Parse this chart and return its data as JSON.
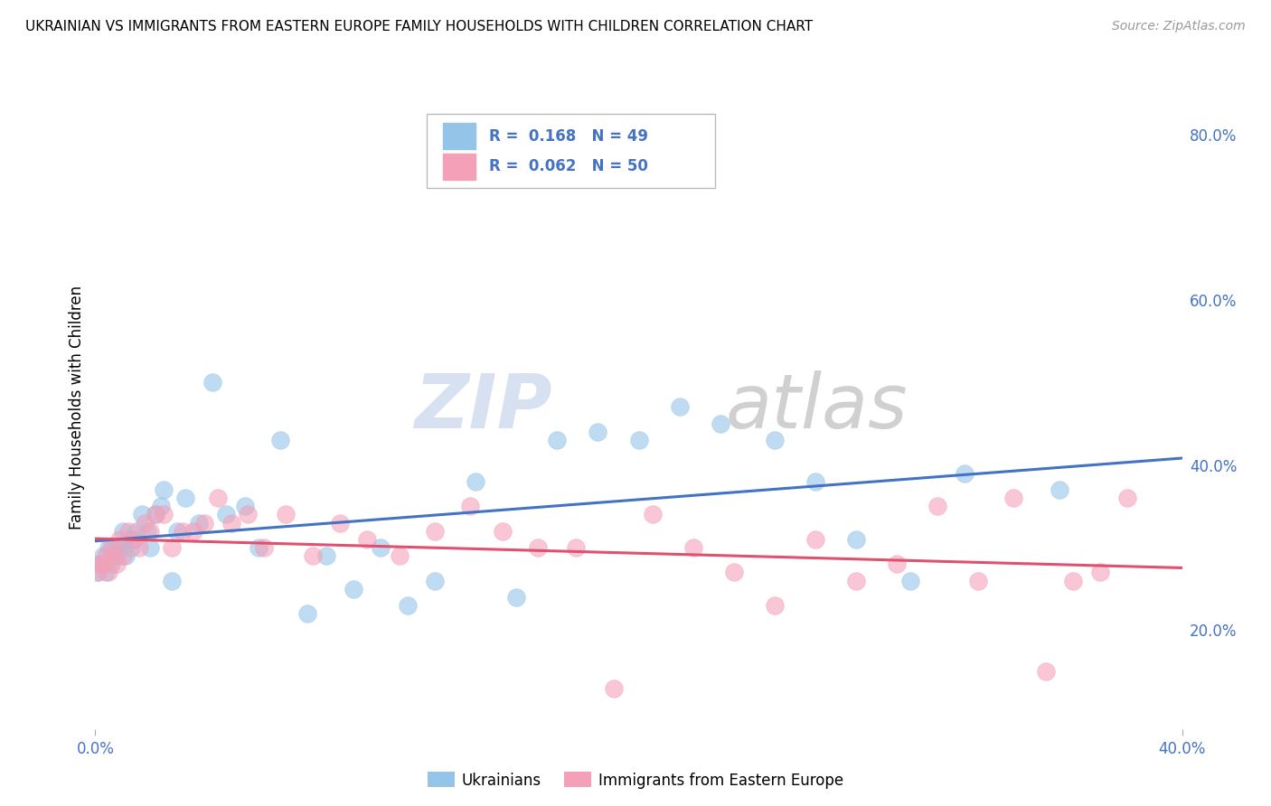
{
  "title": "UKRAINIAN VS IMMIGRANTS FROM EASTERN EUROPE FAMILY HOUSEHOLDS WITH CHILDREN CORRELATION CHART",
  "source": "Source: ZipAtlas.com",
  "ylabel": "Family Households with Children",
  "xlim": [
    0.0,
    0.4
  ],
  "ylim": [
    0.08,
    0.86
  ],
  "yticks": [
    0.2,
    0.4,
    0.6,
    0.8
  ],
  "ytick_labels": [
    "20.0%",
    "40.0%",
    "60.0%",
    "80.0%"
  ],
  "xtick_labels": [
    "0.0%",
    "40.0%"
  ],
  "r_ukrainian": 0.168,
  "n_ukrainian": 49,
  "r_eastern_europe": 0.062,
  "n_eastern_europe": 50,
  "legend_label1": "Ukrainians",
  "legend_label2": "Immigrants from Eastern Europe",
  "color_ukrainian": "#94C4E8",
  "color_eastern_europe": "#F4A0B8",
  "line_color_ukrainian": "#4472C4",
  "line_color_eastern_europe": "#E05070",
  "background_color": "#FFFFFF",
  "watermark": "ZIPatlas",
  "ukrainian_x": [
    0.001,
    0.002,
    0.003,
    0.004,
    0.005,
    0.006,
    0.007,
    0.008,
    0.009,
    0.01,
    0.011,
    0.012,
    0.013,
    0.014,
    0.015,
    0.017,
    0.019,
    0.02,
    0.022,
    0.024,
    0.025,
    0.028,
    0.03,
    0.033,
    0.038,
    0.043,
    0.048,
    0.055,
    0.06,
    0.068,
    0.078,
    0.085,
    0.095,
    0.105,
    0.115,
    0.125,
    0.14,
    0.155,
    0.17,
    0.185,
    0.2,
    0.215,
    0.23,
    0.25,
    0.265,
    0.28,
    0.3,
    0.32,
    0.355
  ],
  "ukrainian_y": [
    0.27,
    0.28,
    0.29,
    0.27,
    0.3,
    0.28,
    0.3,
    0.29,
    0.3,
    0.32,
    0.29,
    0.31,
    0.3,
    0.31,
    0.32,
    0.34,
    0.32,
    0.3,
    0.34,
    0.35,
    0.37,
    0.26,
    0.32,
    0.36,
    0.33,
    0.5,
    0.34,
    0.35,
    0.3,
    0.43,
    0.22,
    0.29,
    0.25,
    0.3,
    0.23,
    0.26,
    0.38,
    0.24,
    0.43,
    0.44,
    0.43,
    0.47,
    0.45,
    0.43,
    0.38,
    0.31,
    0.26,
    0.39,
    0.37
  ],
  "eastern_europe_x": [
    0.001,
    0.002,
    0.003,
    0.004,
    0.005,
    0.006,
    0.007,
    0.008,
    0.009,
    0.01,
    0.012,
    0.014,
    0.016,
    0.018,
    0.02,
    0.022,
    0.025,
    0.028,
    0.032,
    0.036,
    0.04,
    0.045,
    0.05,
    0.056,
    0.062,
    0.07,
    0.08,
    0.09,
    0.1,
    0.112,
    0.125,
    0.138,
    0.15,
    0.163,
    0.177,
    0.191,
    0.205,
    0.22,
    0.235,
    0.25,
    0.265,
    0.28,
    0.295,
    0.31,
    0.325,
    0.338,
    0.35,
    0.36,
    0.37,
    0.38
  ],
  "eastern_europe_y": [
    0.27,
    0.28,
    0.28,
    0.29,
    0.27,
    0.3,
    0.29,
    0.28,
    0.31,
    0.29,
    0.32,
    0.31,
    0.3,
    0.33,
    0.32,
    0.34,
    0.34,
    0.3,
    0.32,
    0.32,
    0.33,
    0.36,
    0.33,
    0.34,
    0.3,
    0.34,
    0.29,
    0.33,
    0.31,
    0.29,
    0.32,
    0.35,
    0.32,
    0.3,
    0.3,
    0.13,
    0.34,
    0.3,
    0.27,
    0.23,
    0.31,
    0.26,
    0.28,
    0.35,
    0.26,
    0.36,
    0.15,
    0.26,
    0.27,
    0.36
  ]
}
